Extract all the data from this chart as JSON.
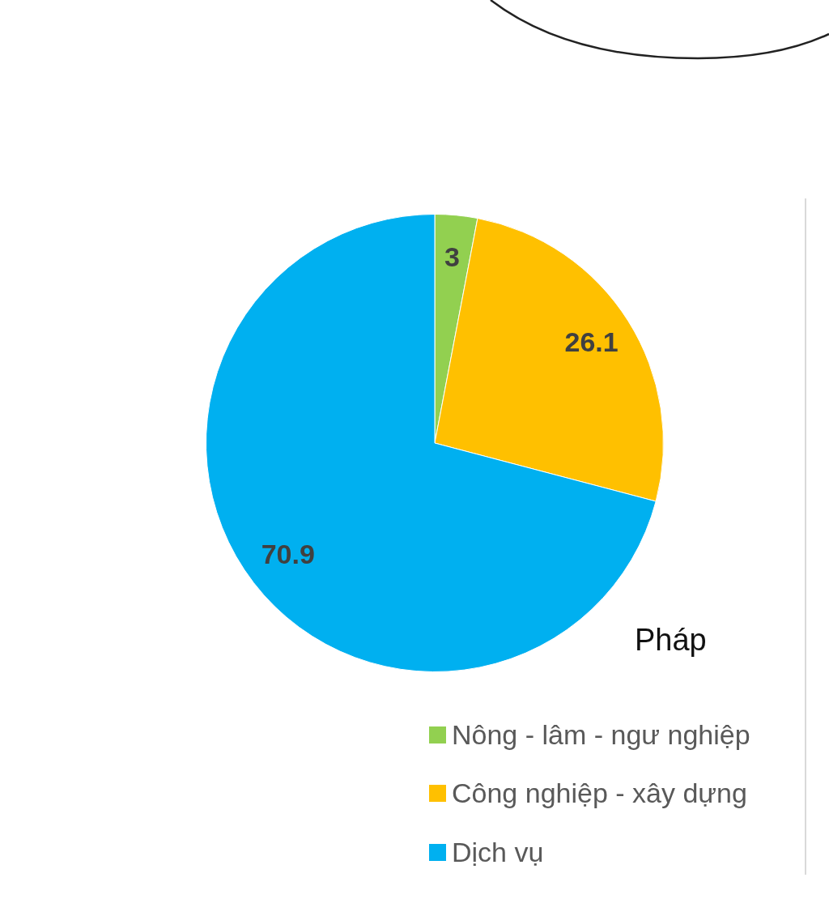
{
  "chart_data": {
    "type": "pie",
    "title": "Pháp",
    "categories": [
      "Nông - lâm - ngư nghiệp",
      "Công nghiệp - xây dựng",
      "Dịch vụ"
    ],
    "values": [
      3,
      26.1,
      70.9
    ],
    "colors": [
      "#92d050",
      "#ffc000",
      "#00b0f0"
    ],
    "data_labels": true,
    "legend": "bottom right"
  }
}
